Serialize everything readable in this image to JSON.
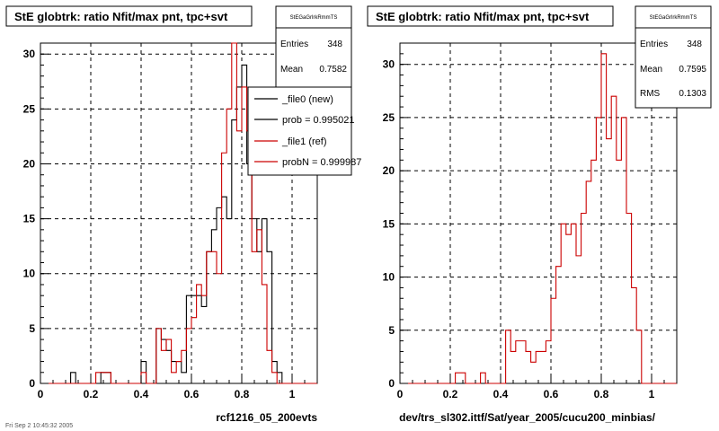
{
  "bottom_timestamp": "Fri Sep 2 10:45:32 2005",
  "chart_data": [
    {
      "type": "histogram",
      "title": "StE globtrk: ratio Nfit/max pnt, tpc+svt",
      "xlabel": "rcf1216_05_200evts",
      "ylabel": "",
      "xlim": [
        0,
        1.1
      ],
      "ylim": [
        0,
        31
      ],
      "x_ticks": [
        0,
        0.2,
        0.4,
        0.6,
        0.8,
        1
      ],
      "x_tick_labels": [
        "0",
        "0.2",
        "0.4",
        "0.6",
        "0.8",
        "1"
      ],
      "y_ticks": [
        0,
        5,
        10,
        15,
        20,
        25,
        30
      ],
      "y_tick_labels": [
        "0",
        "5",
        "10",
        "15",
        "20",
        "25",
        "30"
      ],
      "grid": true,
      "bins": 50,
      "bin_width": 0.02,
      "series": [
        {
          "name": "_file0 (new)",
          "color": "#000000",
          "values": [
            0,
            0,
            0,
            0,
            0,
            0,
            1,
            0,
            0,
            0,
            0,
            0,
            1,
            1,
            0,
            0,
            0,
            0,
            0,
            0,
            2,
            0,
            0,
            5,
            4,
            3,
            2,
            2,
            1,
            8,
            8,
            8,
            7,
            12,
            14,
            16,
            17,
            15,
            24,
            27,
            29,
            20,
            15,
            12,
            15,
            12,
            2,
            1,
            0,
            0
          ]
        },
        {
          "name": "_file1 (ref)",
          "color": "#cc0000",
          "values": [
            0,
            0,
            0,
            0,
            0,
            0,
            0,
            0,
            0,
            0,
            0,
            1,
            1,
            1,
            0,
            0,
            0,
            0,
            0,
            0,
            1,
            0,
            0,
            5,
            3,
            4,
            1,
            2,
            3,
            5,
            6,
            9,
            8,
            12,
            12,
            10,
            21,
            25,
            31,
            23,
            27,
            23,
            12,
            14,
            9,
            3,
            1,
            0,
            0,
            0
          ]
        }
      ],
      "stats_box": {
        "title": "StEGaGrlrkRmmTS",
        "rows": [
          {
            "label": "Entries",
            "value": "348"
          },
          {
            "label": "Mean",
            "value": "0.7582"
          }
        ]
      },
      "legend": {
        "position": "top-right",
        "entries": [
          {
            "label": "_file0 (new)",
            "color": "#000000"
          },
          {
            "label": "prob = 0.995021",
            "color": "#000000"
          },
          {
            "label": "_file1 (ref)",
            "color": "#cc0000"
          },
          {
            "label": "probN = 0.999987",
            "color": "#cc0000"
          }
        ]
      }
    },
    {
      "type": "histogram",
      "title": "StE globtrk: ratio Nfit/max pnt, tpc+svt",
      "xlabel": "dev/trs_sl302.ittf/Sat/year_2005/cucu200_minbias/",
      "ylabel": "",
      "xlim": [
        0,
        1.1
      ],
      "ylim": [
        0,
        32
      ],
      "x_ticks": [
        0,
        0.2,
        0.4,
        0.6,
        0.8,
        1
      ],
      "x_tick_labels": [
        "0",
        "0.2",
        "0.4",
        "0.6",
        "0.8",
        "1"
      ],
      "y_ticks": [
        0,
        5,
        10,
        15,
        20,
        25,
        30
      ],
      "y_tick_labels": [
        "0",
        "5",
        "10",
        "15",
        "20",
        "25",
        "30"
      ],
      "grid": true,
      "bins": 50,
      "bin_width": 0.02,
      "series": [
        {
          "name": "",
          "color": "#cc0000",
          "values": [
            0,
            0,
            0,
            0,
            0,
            0,
            0,
            0,
            0,
            0,
            0,
            1,
            1,
            0,
            0,
            0,
            1,
            0,
            0,
            0,
            0,
            5,
            3,
            4,
            4,
            3,
            2,
            3,
            3,
            4,
            8,
            11,
            15,
            14,
            15,
            12,
            16,
            19,
            21,
            25,
            31,
            23,
            27,
            21,
            25,
            16,
            9,
            5,
            0,
            0
          ]
        }
      ],
      "stats_box": {
        "title": "StEGaGrlrkRmmTS",
        "rows": [
          {
            "label": "Entries",
            "value": "348"
          },
          {
            "label": "Mean",
            "value": "0.7595"
          },
          {
            "label": "RMS",
            "value": "0.1303"
          }
        ]
      }
    }
  ]
}
